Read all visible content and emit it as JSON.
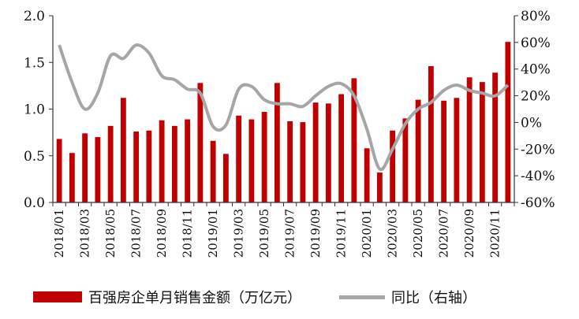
{
  "chart_data": {
    "type": "bar+line",
    "categories": [
      "2018/01",
      "2018/02",
      "2018/03",
      "2018/04",
      "2018/05",
      "2018/06",
      "2018/07",
      "2018/08",
      "2018/09",
      "2018/10",
      "2018/11",
      "2018/12",
      "2019/01",
      "2019/02",
      "2019/03",
      "2019/04",
      "2019/05",
      "2019/06",
      "2019/07",
      "2019/08",
      "2019/09",
      "2019/10",
      "2019/11",
      "2019/12",
      "2020/01",
      "2020/02",
      "2020/03",
      "2020/04",
      "2020/05",
      "2020/06",
      "2020/07",
      "2020/08",
      "2020/09",
      "2020/10",
      "2020/11",
      "2020/12"
    ],
    "x_tick_labels": [
      "2018/01",
      "2018/03",
      "2018/05",
      "2018/07",
      "2018/09",
      "2018/11",
      "2019/01",
      "2019/03",
      "2019/05",
      "2019/07",
      "2019/09",
      "2019/11",
      "2020/01",
      "2020/03",
      "2020/05",
      "2020/07",
      "2020/09",
      "2020/11"
    ],
    "series": [
      {
        "name": "百强房企单月销售金额（万亿元）",
        "type": "bar",
        "axis": "left",
        "color": "#c00000",
        "values": [
          0.68,
          0.53,
          0.74,
          0.7,
          0.82,
          1.12,
          0.76,
          0.77,
          0.88,
          0.82,
          0.89,
          1.28,
          0.66,
          0.52,
          0.93,
          0.89,
          0.97,
          1.28,
          0.87,
          0.86,
          1.07,
          1.06,
          1.16,
          1.33,
          0.58,
          0.32,
          0.77,
          0.9,
          1.1,
          1.46,
          1.09,
          1.12,
          1.34,
          1.29,
          1.39,
          1.72
        ]
      },
      {
        "name": "同比（右轴）",
        "type": "line",
        "axis": "right",
        "color": "#a6a6a6",
        "values": [
          58,
          30,
          10,
          22,
          50,
          48,
          58,
          52,
          35,
          32,
          25,
          22,
          -3,
          -2,
          25,
          27,
          17,
          14,
          14,
          12,
          20,
          27,
          29,
          20,
          -5,
          -35,
          -20,
          -1,
          10,
          15,
          24,
          28,
          24,
          22,
          20,
          28
        ]
      }
    ],
    "y_left": {
      "range": [
        0,
        2.0
      ],
      "ticks": [
        "0.0",
        "0.5",
        "1.0",
        "1.5",
        "2.0"
      ]
    },
    "y_right": {
      "range": [
        -60,
        80
      ],
      "ticks": [
        "-60%",
        "-40%",
        "-20%",
        "0%",
        "20%",
        "40%",
        "60%",
        "80%"
      ]
    },
    "grid": false,
    "legend_position": "bottom"
  }
}
